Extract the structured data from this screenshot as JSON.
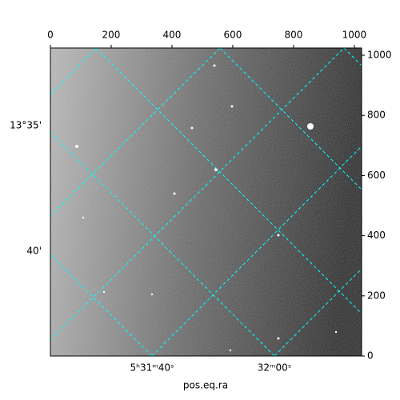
{
  "chart_data": {
    "type": "image",
    "xlabel": "pos.eq.ra",
    "xlim": [
      0,
      1024
    ],
    "ylim": [
      0,
      1024
    ],
    "xticks": [
      0,
      200,
      400,
      600,
      800,
      1000
    ],
    "yticks": [
      0,
      200,
      400,
      600,
      800,
      1000
    ],
    "ra_labels": [
      "5ʰ31ᵐ40ˢ",
      "32ᵐ00ˢ"
    ],
    "dec_labels": [
      "13°35'",
      "40'"
    ],
    "grid_color": "#00ffff"
  }
}
